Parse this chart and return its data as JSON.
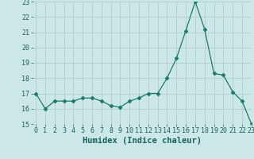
{
  "x": [
    0,
    1,
    2,
    3,
    4,
    5,
    6,
    7,
    8,
    9,
    10,
    11,
    12,
    13,
    14,
    15,
    16,
    17,
    18,
    19,
    20,
    21,
    22,
    23
  ],
  "y": [
    17.0,
    16.0,
    16.5,
    16.5,
    16.5,
    16.7,
    16.7,
    16.5,
    16.2,
    16.1,
    16.5,
    16.7,
    17.0,
    17.0,
    18.0,
    19.3,
    21.1,
    23.0,
    21.2,
    18.3,
    18.2,
    17.1,
    16.5,
    15.0
  ],
  "line_color": "#1a7a6a",
  "marker": "D",
  "marker_size": 2.5,
  "bg_color": "#cce8e6",
  "grid_color": "#b0cccc",
  "xlabel": "Humidex (Indice chaleur)",
  "ylim": [
    15,
    23
  ],
  "xlim": [
    -0.3,
    23
  ],
  "yticks": [
    15,
    16,
    17,
    18,
    19,
    20,
    21,
    22,
    23
  ],
  "xticks": [
    0,
    1,
    2,
    3,
    4,
    5,
    6,
    7,
    8,
    9,
    10,
    11,
    12,
    13,
    14,
    15,
    16,
    17,
    18,
    19,
    20,
    21,
    22,
    23
  ],
  "title_color": "#1a6060",
  "tick_fontsize": 6,
  "xlabel_fontsize": 7.5
}
